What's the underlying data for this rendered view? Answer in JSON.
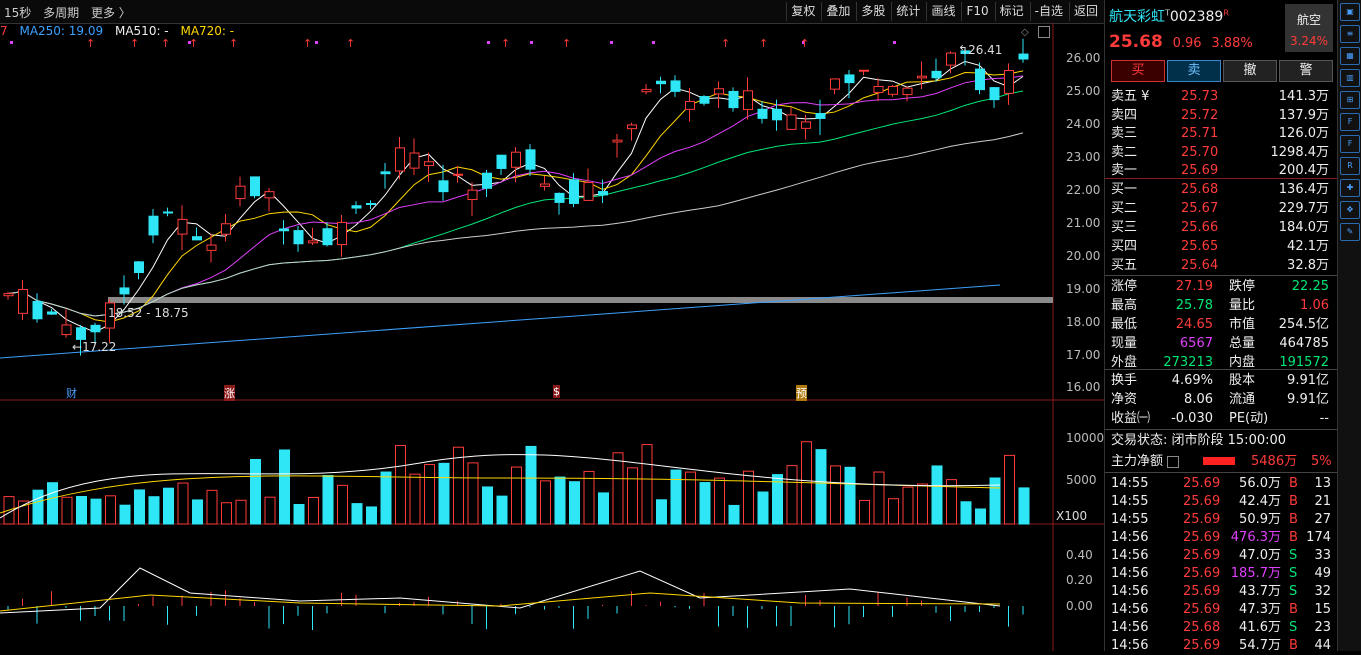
{
  "toolbar": {
    "left": [
      "15秒",
      "多周期",
      "更多 〉"
    ],
    "right": [
      "复权",
      "叠加",
      "多股",
      "统计",
      "画线",
      "F10",
      "标记",
      "-自选",
      "返回"
    ]
  },
  "ma_legend": {
    "prefix": "7",
    "ma250": "MA250: 19.09",
    "ma510": "MA510: -",
    "ma720": "MA720: -"
  },
  "price_axis": [
    "26.00",
    "25.00",
    "24.00",
    "23.00",
    "22.00",
    "21.00",
    "20.00",
    "19.00",
    "18.00",
    "17.00",
    "16.00"
  ],
  "volume_axis": [
    "10000",
    "5000"
  ],
  "volume_unit": "X100",
  "indicator_axis": [
    "0.40",
    "0.20",
    "0.00"
  ],
  "annotations": {
    "high": "26.41",
    "range": "18.52 - 18.75",
    "low": "17.22"
  },
  "event_markers": [
    "财",
    "涨",
    "$",
    "预"
  ],
  "stock": {
    "name": "航天彩虹",
    "code": "002389",
    "tag": "R",
    "price": "25.68",
    "change": "0.96",
    "pct": "3.88%",
    "sector": "航空",
    "sector_pct": "3.24%"
  },
  "trade_buttons": [
    "买",
    "卖",
    "撤",
    "警"
  ],
  "sells": [
    [
      "卖五 ¥",
      "25.73",
      "141.3万"
    ],
    [
      "卖四",
      "25.72",
      "137.9万"
    ],
    [
      "卖三",
      "25.71",
      "126.0万"
    ],
    [
      "卖二",
      "25.70",
      "1298.4万"
    ],
    [
      "卖一",
      "25.69",
      "200.4万"
    ]
  ],
  "buys": [
    [
      "买一",
      "25.68",
      "136.4万"
    ],
    [
      "买二",
      "25.67",
      "229.7万"
    ],
    [
      "买三",
      "25.66",
      "184.0万"
    ],
    [
      "买四",
      "25.65",
      "42.1万"
    ],
    [
      "买五",
      "25.64",
      "32.8万"
    ]
  ],
  "stats": [
    [
      "涨停",
      "27.19",
      "跌停",
      "22.25"
    ],
    [
      "最高",
      "25.78",
      "量比",
      "1.06"
    ],
    [
      "最低",
      "24.65",
      "市值",
      "254.5亿"
    ],
    [
      "现量",
      "6567",
      "总量",
      "464785"
    ],
    [
      "外盘",
      "273213",
      "内盘",
      "191572"
    ]
  ],
  "stats2": [
    [
      "换手",
      "4.69%",
      "股本",
      "9.91亿"
    ],
    [
      "净资",
      "8.06",
      "流通",
      "9.91亿"
    ],
    [
      "收益㈠",
      "-0.030",
      "PE(动)",
      "--"
    ]
  ],
  "status": "交易状态: 闭市阶段 15:00:00",
  "main_flow": {
    "label": "主力净额",
    "value": "5486万",
    "pct": "5%"
  },
  "ticks": [
    [
      "14:55",
      "25.69",
      "56.0万",
      "B",
      "13"
    ],
    [
      "14:55",
      "25.69",
      "42.4万",
      "B",
      "21"
    ],
    [
      "14:55",
      "25.69",
      "50.9万",
      "B",
      "27"
    ],
    [
      "14:56",
      "25.69",
      "476.3万",
      "B",
      "174"
    ],
    [
      "14:56",
      "25.69",
      "47.0万",
      "S",
      "33"
    ],
    [
      "14:56",
      "25.69",
      "185.7万",
      "S",
      "49"
    ],
    [
      "14:56",
      "25.69",
      "43.7万",
      "S",
      "32"
    ],
    [
      "14:56",
      "25.69",
      "47.3万",
      "B",
      "15"
    ],
    [
      "14:56",
      "25.68",
      "41.6万",
      "S",
      "23"
    ],
    [
      "14:56",
      "25.69",
      "54.7万",
      "B",
      "44"
    ]
  ],
  "icons": [
    "chart-icon",
    "list-icon",
    "grid-icon",
    "bar-icon",
    "candle-icon",
    "f10-icon",
    "f-icon",
    "rsi-icon",
    "cross-icon",
    "move-icon",
    "pen-icon"
  ]
}
